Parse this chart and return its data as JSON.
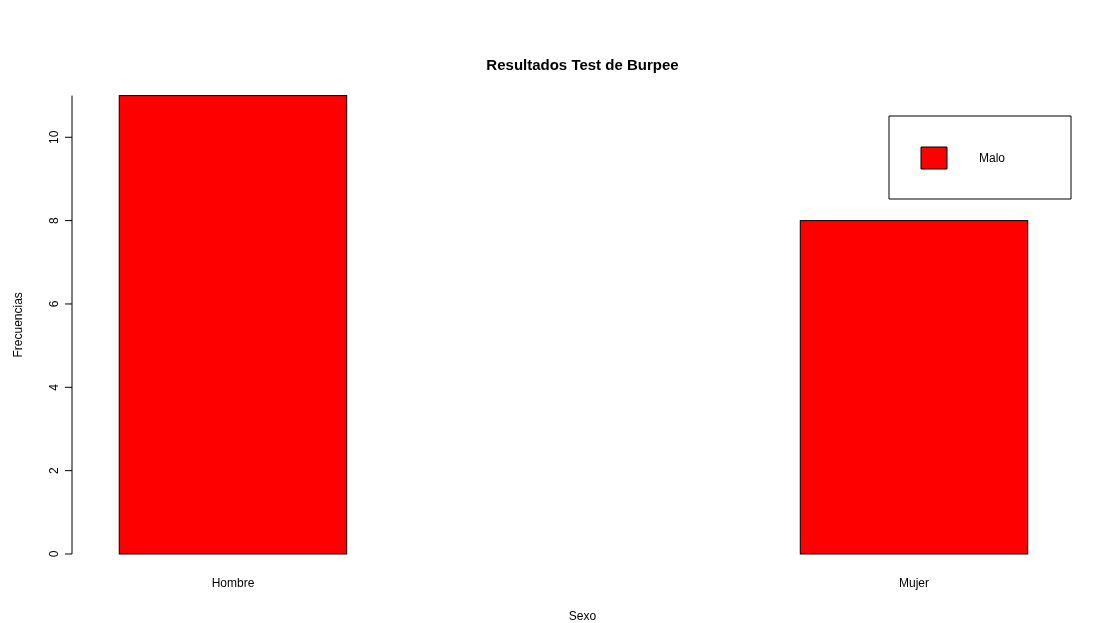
{
  "chart_data": {
    "type": "bar",
    "title": "Resultados Test de Burpee",
    "xlabel": "Sexo",
    "ylabel": "Frecuencias",
    "categories": [
      "Hombre",
      "Mujer"
    ],
    "series": [
      {
        "name": "Malo",
        "color": "#ff0000",
        "values": [
          11,
          8
        ]
      }
    ],
    "ylim": [
      0,
      11
    ],
    "yticks": [
      0,
      2,
      4,
      6,
      8,
      10
    ],
    "grid": false,
    "legend": "top right"
  }
}
